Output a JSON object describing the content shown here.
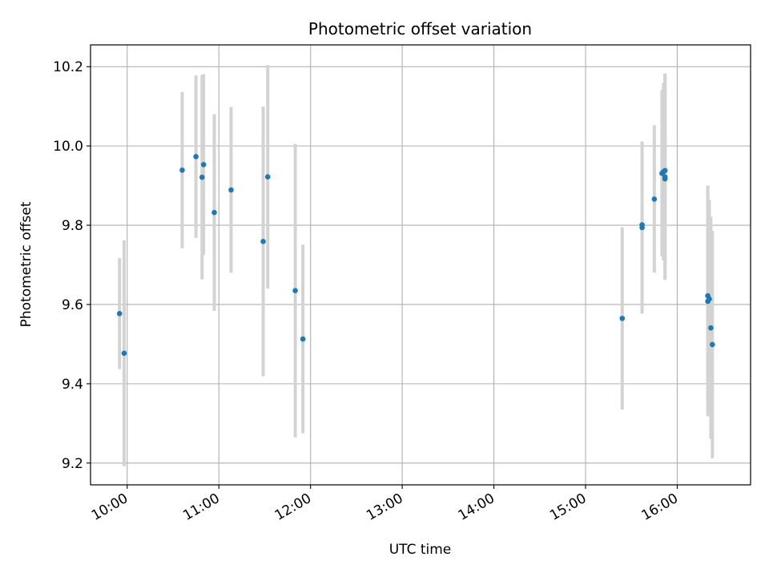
{
  "chart_data": {
    "type": "scatter",
    "title": "Photometric offset variation",
    "xlabel": "UTC time",
    "ylabel": "Photometric offset",
    "x_ticks": [
      "10:00",
      "11:00",
      "12:00",
      "13:00",
      "14:00",
      "15:00",
      "16:00"
    ],
    "y_ticks": [
      "9.2",
      "9.4",
      "9.6",
      "9.8",
      "10.0",
      "10.2"
    ],
    "xlim": [
      "09:36",
      "16:48"
    ],
    "ylim": [
      9.145,
      10.255
    ],
    "grid": true,
    "colors": {
      "points": "#1f77b4",
      "errorbars": "#d3d3d3",
      "grid": "#b0b0b0"
    },
    "series": [
      {
        "points": [
          {
            "x": "09:55",
            "y": 9.577,
            "yerr": 0.14
          },
          {
            "x": "09:58",
            "y": 9.477,
            "yerr": 0.285
          },
          {
            "x": "10:36",
            "y": 9.939,
            "yerr": 0.197
          },
          {
            "x": "10:45",
            "y": 9.973,
            "yerr": 0.205
          },
          {
            "x": "10:49",
            "y": 9.921,
            "yerr": 0.258
          },
          {
            "x": "10:50",
            "y": 9.953,
            "yerr": 0.228
          },
          {
            "x": "10:57",
            "y": 9.832,
            "yerr": 0.248
          },
          {
            "x": "11:08",
            "y": 9.889,
            "yerr": 0.209
          },
          {
            "x": "11:29",
            "y": 9.759,
            "yerr": 0.34
          },
          {
            "x": "11:32",
            "y": 9.922,
            "yerr": 0.282
          },
          {
            "x": "11:50",
            "y": 9.635,
            "yerr": 0.37
          },
          {
            "x": "11:55",
            "y": 9.513,
            "yerr": 0.238
          },
          {
            "x": "15:24",
            "y": 9.565,
            "yerr": 0.23
          },
          {
            "x": "15:37",
            "y": 9.794,
            "yerr": 0.217
          },
          {
            "x": "15:37",
            "y": 9.801,
            "yerr": 0.21
          },
          {
            "x": "15:45",
            "y": 9.866,
            "yerr": 0.186
          },
          {
            "x": "15:50",
            "y": 9.931,
            "yerr": 0.21
          },
          {
            "x": "15:51",
            "y": 9.935,
            "yerr": 0.224
          },
          {
            "x": "15:52",
            "y": 9.938,
            "yerr": 0.245
          },
          {
            "x": "15:52",
            "y": 9.917,
            "yerr": 0.253
          },
          {
            "x": "15:52",
            "y": 9.922,
            "yerr": 0.26
          },
          {
            "x": "16:20",
            "y": 9.608,
            "yerr": 0.29
          },
          {
            "x": "16:20",
            "y": 9.622,
            "yerr": 0.278
          },
          {
            "x": "16:21",
            "y": 9.614,
            "yerr": 0.25
          },
          {
            "x": "16:22",
            "y": 9.541,
            "yerr": 0.28
          },
          {
            "x": "16:23",
            "y": 9.499,
            "yerr": 0.287
          }
        ]
      }
    ]
  }
}
